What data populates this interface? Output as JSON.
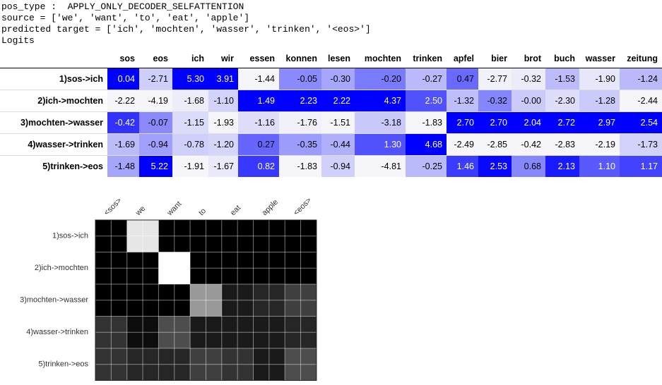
{
  "header": {
    "lines": [
      "pos_type :  APPLY_ONLY_DECODER_SELFATTENTION",
      "source = ['we', 'want', 'to', 'eat', 'apple']",
      "predicted target = ['ich', 'mochten', 'wasser', 'trinken', '<eos>']",
      "Logits"
    ]
  },
  "table": {
    "columns": [
      "sos",
      "eos",
      "ich",
      "wir",
      "essen",
      "konnen",
      "lesen",
      "mochten",
      "trinken",
      "apfel",
      "bier",
      "brot",
      "buch",
      "wasser",
      "zeitung"
    ],
    "rows": [
      {
        "label": "1)sos->ich",
        "cells": [
          "0.04",
          "-2.71",
          "5.30",
          "3.91",
          "-1.44",
          "-0.05",
          "-0.30",
          "-0.20",
          "-0.27",
          "0.47",
          "-2.77",
          "-0.32",
          "-1.53",
          "-1.90",
          "-1.24"
        ]
      },
      {
        "label": "2)ich->mochten",
        "cells": [
          "-2.22",
          "-4.19",
          "-1.68",
          "-1.10",
          "1.49",
          "2.23",
          "2.22",
          "4.37",
          "2.50",
          "-1.32",
          "-0.32",
          "-0.00",
          "-2.30",
          "-1.28",
          "-2.44"
        ]
      },
      {
        "label": "3)mochten->wasser",
        "cells": [
          "-0.42",
          "-0.07",
          "-1.15",
          "-1.93",
          "-1.16",
          "-1.76",
          "-1.51",
          "-3.18",
          "-1.83",
          "2.70",
          "2.70",
          "2.04",
          "2.72",
          "2.97",
          "2.54"
        ]
      },
      {
        "label": "4)wasser->trinken",
        "cells": [
          "-1.69",
          "-0.94",
          "-0.78",
          "-1.20",
          "0.27",
          "-0.35",
          "-0.44",
          "1.30",
          "4.68",
          "-2.49",
          "-2.85",
          "-0.42",
          "-2.83",
          "-2.19",
          "-1.73"
        ]
      },
      {
        "label": "5)trinken->eos",
        "cells": [
          "-1.48",
          "5.22",
          "-1.91",
          "-1.67",
          "0.82",
          "-1.83",
          "-0.94",
          "-4.81",
          "-0.25",
          "1.46",
          "2.53",
          "0.68",
          "2.13",
          "1.10",
          "1.17"
        ]
      }
    ]
  },
  "chart_data": {
    "type": "heatmap",
    "x": [
      "<sos>",
      "we",
      "want",
      "to",
      "eat",
      "apple",
      "<eos>"
    ],
    "y": [
      "1)sos->ich",
      "2)ich->mochten",
      "3)mochten->wasser",
      "4)wasser->trinken",
      "5)trinken->eos"
    ],
    "values": [
      [
        0.0,
        0.9,
        0.0,
        0.0,
        0.0,
        0.0,
        0.0
      ],
      [
        0.0,
        0.0,
        1.0,
        0.0,
        0.0,
        0.0,
        0.0
      ],
      [
        0.0,
        0.0,
        0.0,
        0.6,
        0.1,
        0.15,
        0.25
      ],
      [
        0.2,
        0.05,
        0.3,
        0.1,
        0.1,
        0.1,
        0.15
      ],
      [
        0.2,
        0.15,
        0.15,
        0.25,
        0.2,
        0.1,
        0.3
      ]
    ]
  }
}
